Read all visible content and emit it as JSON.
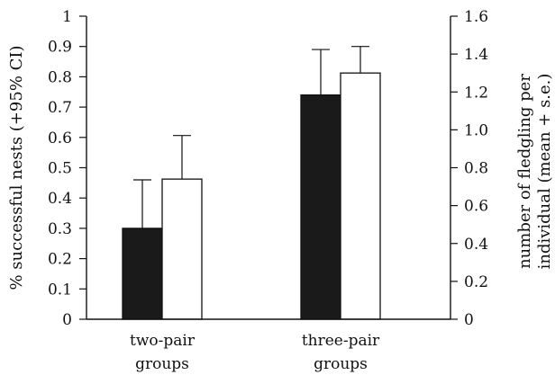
{
  "chart_data": {
    "type": "bar",
    "categories": [
      "two-pair\ngroups",
      "three-pair\ngroups"
    ],
    "ylabel_left": "% successful nests (+95% CI)",
    "ylabel_right": "number of fledgling per\nindividual (mean + s.e.)",
    "ylim_left": [
      0,
      1
    ],
    "ylim_right": [
      0,
      1.6
    ],
    "left_ticks": [
      "0",
      "0.1",
      "0.2",
      "0.3",
      "0.4",
      "0.5",
      "0.6",
      "0.7",
      "0.8",
      "0.9",
      "1"
    ],
    "right_ticks": [
      "0",
      "0.2",
      "0.4",
      "0.6",
      "0.8",
      "1.0",
      "1.2",
      "1.4",
      "1.6"
    ],
    "grid": false,
    "series": [
      {
        "axis": "left",
        "color": "#1a1a1a",
        "values": [
          0.3,
          0.74
        ],
        "errors": [
          0.16,
          0.15
        ]
      },
      {
        "axis": "right",
        "color": "#ffffff",
        "values": [
          0.74,
          1.3
        ],
        "errors": [
          0.23,
          0.14
        ]
      }
    ]
  }
}
